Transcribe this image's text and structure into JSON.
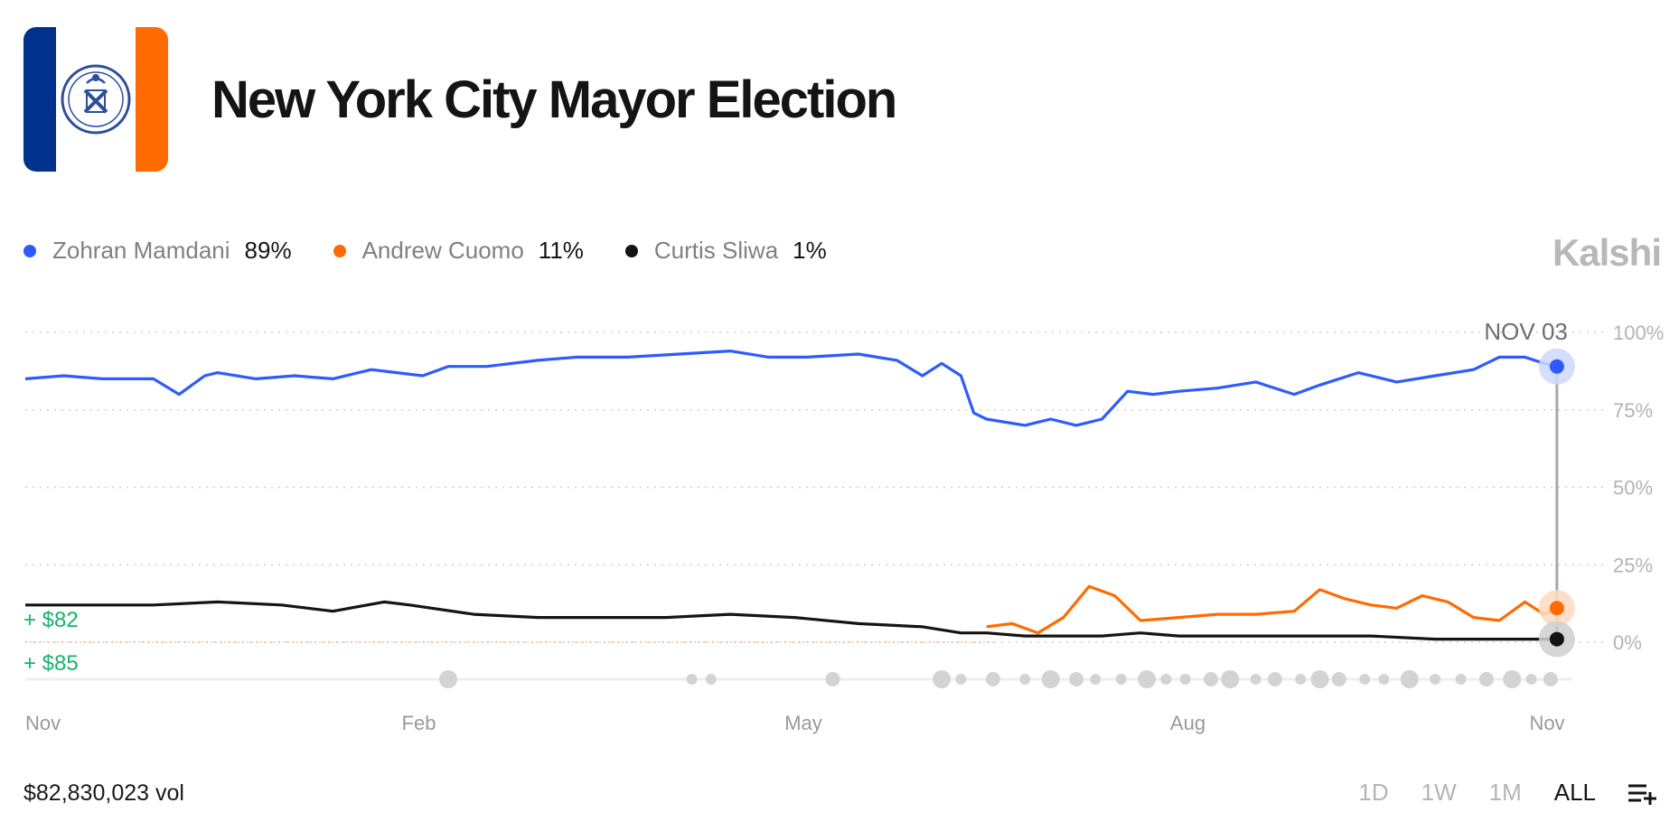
{
  "header": {
    "title": "New York City Mayor Election",
    "flag_colors": {
      "left": "#00318c",
      "middle": "#ffffff",
      "right": "#ff6b00"
    },
    "seal_icon": "nyc-seal-icon"
  },
  "brand": "Kalshi",
  "legend": [
    {
      "name": "Zohran Mamdani",
      "value": "89%",
      "color": "#2e5bff"
    },
    {
      "name": "Andrew Cuomo",
      "value": "11%",
      "color": "#ff6b00"
    },
    {
      "name": "Curtis Sliwa",
      "value": "1%",
      "color": "#141414"
    }
  ],
  "chart_data": {
    "type": "line",
    "hover_date": "NOV 03",
    "ylim": [
      0,
      100
    ],
    "y_ticks": [
      "100%",
      "75%",
      "50%",
      "25%",
      "0%"
    ],
    "x_tick_labels": [
      "Nov",
      "Feb",
      "May",
      "Aug",
      "Nov"
    ],
    "x_range": [
      0,
      12
    ],
    "grid": true,
    "trade_labels": [
      "+ $82",
      "+ $85"
    ],
    "trade_color": "#17b26a",
    "series": [
      {
        "name": "Zohran Mamdani",
        "color": "#2e5bff",
        "x": [
          0,
          0.3,
          0.6,
          1.0,
          1.2,
          1.4,
          1.5,
          1.8,
          2.1,
          2.4,
          2.7,
          2.9,
          3.1,
          3.3,
          3.6,
          4.0,
          4.3,
          4.7,
          5.1,
          5.5,
          5.8,
          6.1,
          6.5,
          6.8,
          7.0,
          7.15,
          7.3,
          7.4,
          7.5,
          7.65,
          7.8,
          8.0,
          8.2,
          8.4,
          8.6,
          8.8,
          9.0,
          9.3,
          9.6,
          9.9,
          10.1,
          10.4,
          10.7,
          11.0,
          11.3,
          11.5,
          11.7,
          11.85,
          11.95
        ],
        "values": [
          85,
          86,
          85,
          85,
          80,
          86,
          87,
          85,
          86,
          85,
          88,
          87,
          86,
          89,
          89,
          91,
          92,
          92,
          93,
          94,
          92,
          92,
          93,
          91,
          86,
          90,
          86,
          74,
          72,
          71,
          70,
          72,
          70,
          72,
          81,
          80,
          81,
          82,
          84,
          80,
          83,
          87,
          84,
          86,
          88,
          92,
          92,
          90,
          89
        ]
      },
      {
        "name": "Andrew Cuomo",
        "color": "#ff6b00",
        "x": [
          7.5,
          7.7,
          7.9,
          8.1,
          8.3,
          8.5,
          8.7,
          9.0,
          9.3,
          9.6,
          9.9,
          10.1,
          10.3,
          10.5,
          10.7,
          10.9,
          11.1,
          11.3,
          11.5,
          11.7,
          11.85,
          11.95
        ],
        "values": [
          5,
          6,
          3,
          8,
          18,
          15,
          7,
          8,
          9,
          9,
          10,
          17,
          14,
          12,
          11,
          15,
          13,
          8,
          7,
          13,
          9,
          11
        ]
      },
      {
        "name": "Curtis Sliwa",
        "color": "#141414",
        "x": [
          0,
          0.5,
          1.0,
          1.5,
          2.0,
          2.4,
          2.8,
          3.0,
          3.5,
          4.0,
          4.5,
          5.0,
          5.5,
          6.0,
          6.5,
          7.0,
          7.3,
          7.5,
          7.8,
          8.1,
          8.4,
          8.7,
          9.0,
          9.5,
          10.0,
          10.5,
          11.0,
          11.5,
          11.95
        ],
        "values": [
          12,
          12,
          12,
          13,
          12,
          10,
          13,
          12,
          9,
          8,
          8,
          8,
          9,
          8,
          6,
          5,
          3,
          3,
          2,
          2,
          2,
          3,
          2,
          2,
          2,
          2,
          1,
          1,
          1
        ]
      }
    ],
    "volume_markers_x": [
      3.3,
      5.2,
      5.35,
      6.3,
      7.15,
      7.3,
      7.55,
      7.8,
      8.0,
      8.2,
      8.35,
      8.55,
      8.75,
      8.9,
      9.05,
      9.25,
      9.4,
      9.6,
      9.75,
      9.95,
      10.1,
      10.25,
      10.45,
      10.6,
      10.8,
      11.0,
      11.2,
      11.4,
      11.6,
      11.75,
      11.9
    ]
  },
  "footer": {
    "volume": "$82,830,023 vol"
  },
  "time_ranges": [
    {
      "label": "1D",
      "active": false
    },
    {
      "label": "1W",
      "active": false
    },
    {
      "label": "1M",
      "active": false
    },
    {
      "label": "ALL",
      "active": true
    }
  ],
  "menu_icon": "add-to-list-icon"
}
